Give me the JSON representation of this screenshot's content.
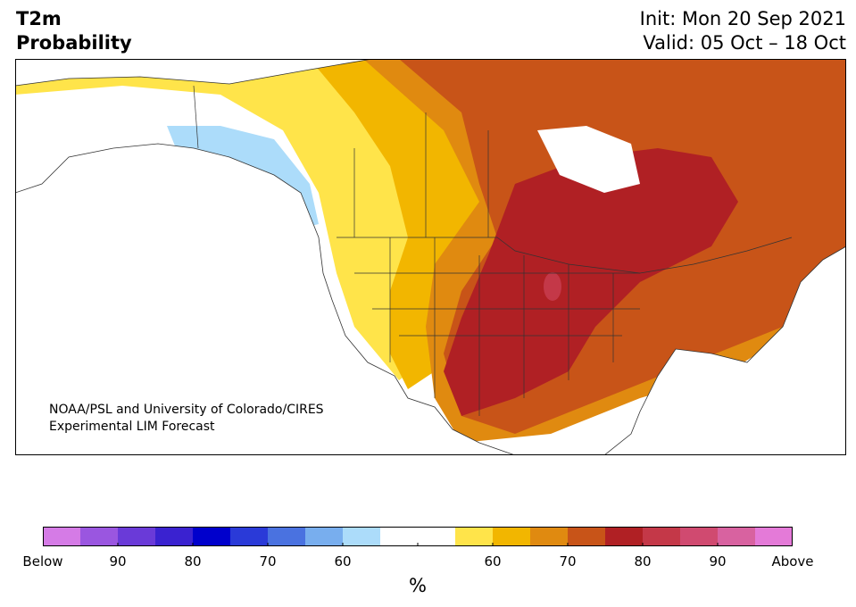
{
  "title": {
    "line1": "T2m",
    "line2": "Probability"
  },
  "dates": {
    "init": "Init: Mon 20 Sep 2021",
    "valid": "Valid: 05 Oct – 18 Oct"
  },
  "credit": {
    "line1": "NOAA/PSL and University of Colorado/CIRES",
    "line2": "Experimental LIM Forecast"
  },
  "colorbar": {
    "unit": "%",
    "colors": [
      "#d57be6",
      "#9a56e0",
      "#6a3ad8",
      "#3a22d0",
      "#0000cc",
      "#2a3ad8",
      "#4a72e0",
      "#78aeee",
      "#acdcfa",
      "#ffffff",
      "#ffffff",
      "#ffe44a",
      "#f2b600",
      "#e08a10",
      "#c85418",
      "#b02024",
      "#c43848",
      "#d04a70",
      "#d862a0",
      "#e47ad8"
    ],
    "labels": [
      "Below",
      "90",
      "80",
      "70",
      "60",
      "",
      "60",
      "70",
      "80",
      "90",
      "Above"
    ]
  },
  "map": {
    "ocean_color": "#ffffff",
    "land_base_color": "#ffffff",
    "border_color": "#333333"
  }
}
